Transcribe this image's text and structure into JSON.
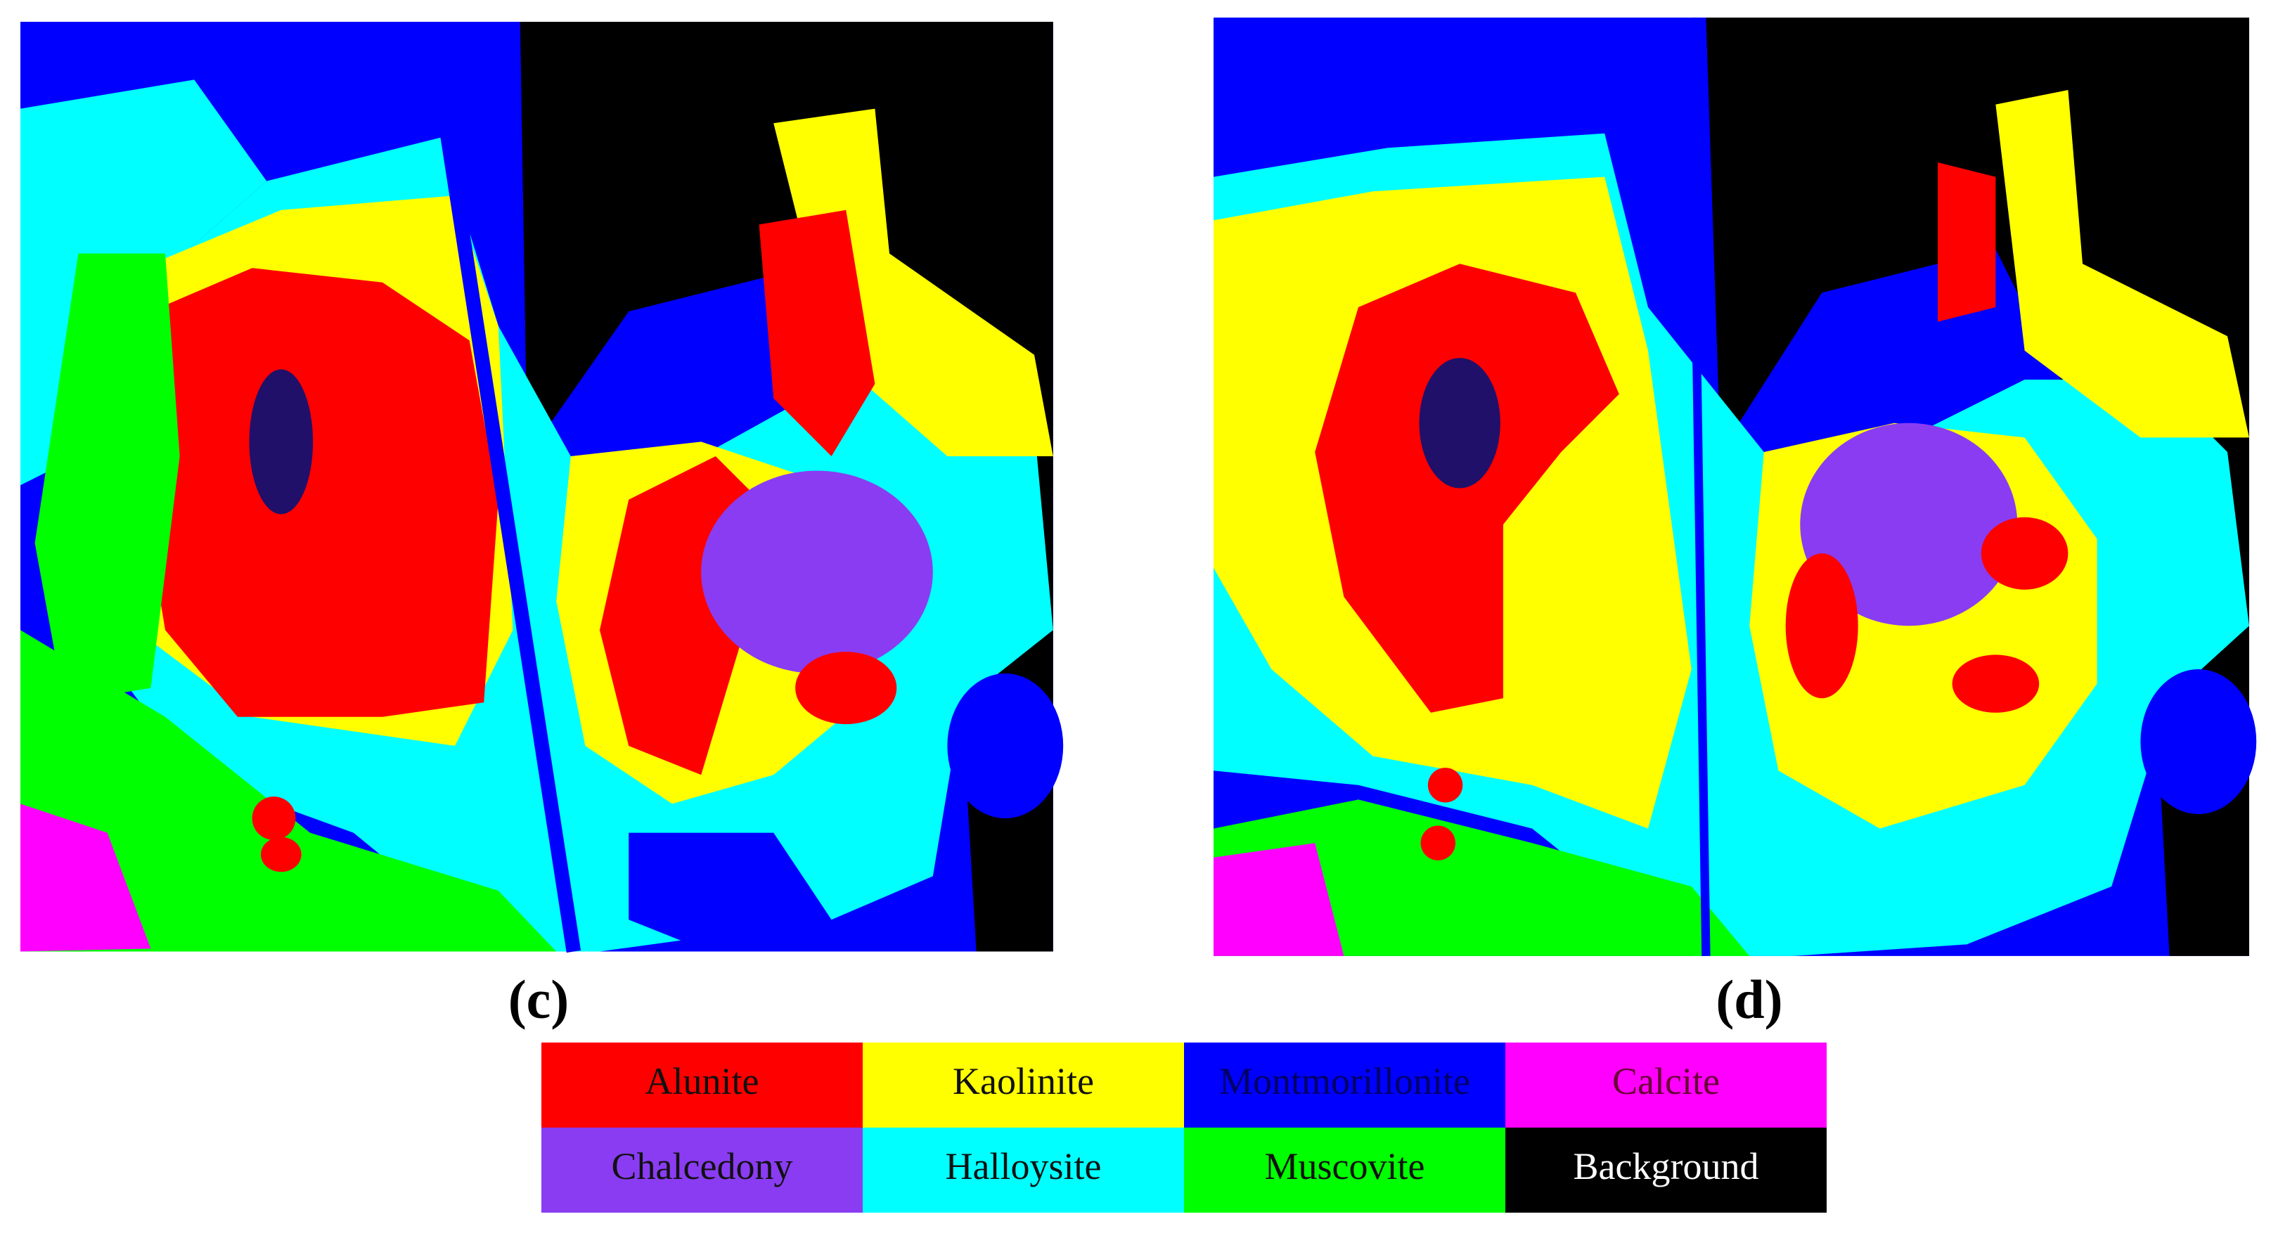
{
  "panels": [
    {
      "label": "(c)"
    },
    {
      "label": "(d)"
    }
  ],
  "legend": [
    {
      "label": "Alunite",
      "color": "#ff0000"
    },
    {
      "label": "Kaolinite",
      "color": "#ffff00"
    },
    {
      "label": "Montmorillonite",
      "color": "#0000ff"
    },
    {
      "label": "Calcite",
      "color": "#ff00ff"
    },
    {
      "label": "Chalcedony",
      "color": "#8a3cf2"
    },
    {
      "label": "Halloysite",
      "color": "#00ffff"
    },
    {
      "label": "Muscovite",
      "color": "#00ff00"
    },
    {
      "label": "Background",
      "color": "#000000"
    }
  ]
}
